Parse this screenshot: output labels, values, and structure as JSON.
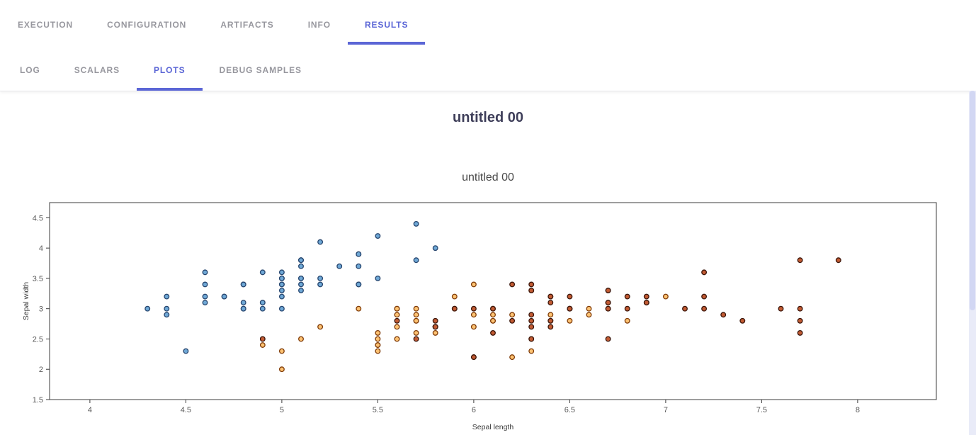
{
  "tabs": {
    "primary": [
      {
        "label": "EXECUTION",
        "active": false
      },
      {
        "label": "CONFIGURATION",
        "active": false
      },
      {
        "label": "ARTIFACTS",
        "active": false
      },
      {
        "label": "INFO",
        "active": false
      },
      {
        "label": "RESULTS",
        "active": true
      }
    ],
    "secondary": [
      {
        "label": "LOG",
        "active": false
      },
      {
        "label": "SCALARS",
        "active": false
      },
      {
        "label": "PLOTS",
        "active": true
      },
      {
        "label": "DEBUG SAMPLES",
        "active": false
      }
    ]
  },
  "content": {
    "group_title": "untitled 00"
  },
  "colors": {
    "accent": "#5b66d6",
    "tab_inactive": "#97979e",
    "axis_line": "#3c3c3c",
    "scrollbar_track": "#e9ebf8",
    "scrollbar_thumb": "#d2d7f3"
  },
  "chart_data": {
    "type": "scatter",
    "title": "untitled 00",
    "xlabel": "Sepal length",
    "ylabel": "Sepal width",
    "xlim": [
      3.79,
      8.41
    ],
    "ylim": [
      1.5,
      4.75
    ],
    "xticks": [
      4,
      4.5,
      5,
      5.5,
      6,
      6.5,
      7,
      7.5,
      8
    ],
    "yticks": [
      1.5,
      2,
      2.5,
      3,
      3.5,
      4,
      4.5
    ],
    "grid": false,
    "legend": "none",
    "series": [
      {
        "name": "blue",
        "fill": "#6fa8d6",
        "stroke": "#26456e",
        "points": [
          [
            5.1,
            3.5
          ],
          [
            4.9,
            3.0
          ],
          [
            4.7,
            3.2
          ],
          [
            4.6,
            3.1
          ],
          [
            5.0,
            3.6
          ],
          [
            5.4,
            3.9
          ],
          [
            4.6,
            3.4
          ],
          [
            5.0,
            3.4
          ],
          [
            4.4,
            2.9
          ],
          [
            4.9,
            3.1
          ],
          [
            5.4,
            3.7
          ],
          [
            4.8,
            3.4
          ],
          [
            4.8,
            3.0
          ],
          [
            4.3,
            3.0
          ],
          [
            5.8,
            4.0
          ],
          [
            5.7,
            4.4
          ],
          [
            5.4,
            3.9
          ],
          [
            5.1,
            3.5
          ],
          [
            5.7,
            3.8
          ],
          [
            5.1,
            3.8
          ],
          [
            5.4,
            3.4
          ],
          [
            5.1,
            3.7
          ],
          [
            4.6,
            3.6
          ],
          [
            5.1,
            3.3
          ],
          [
            4.8,
            3.4
          ],
          [
            5.0,
            3.0
          ],
          [
            5.0,
            3.4
          ],
          [
            5.2,
            3.5
          ],
          [
            5.2,
            3.4
          ],
          [
            4.7,
            3.2
          ],
          [
            4.8,
            3.1
          ],
          [
            5.4,
            3.4
          ],
          [
            5.2,
            4.1
          ],
          [
            5.5,
            4.2
          ],
          [
            4.9,
            3.1
          ],
          [
            5.0,
            3.2
          ],
          [
            5.5,
            3.5
          ],
          [
            4.9,
            3.6
          ],
          [
            4.4,
            3.0
          ],
          [
            5.1,
            3.4
          ],
          [
            5.0,
            3.5
          ],
          [
            4.5,
            2.3
          ],
          [
            4.4,
            3.2
          ],
          [
            5.0,
            3.5
          ],
          [
            5.1,
            3.8
          ],
          [
            4.8,
            3.0
          ],
          [
            5.1,
            3.8
          ],
          [
            4.6,
            3.2
          ],
          [
            5.3,
            3.7
          ],
          [
            5.0,
            3.3
          ]
        ]
      },
      {
        "name": "orange",
        "fill": "#fdc272",
        "stroke": "#7f3b08",
        "points": [
          [
            7.0,
            3.2
          ],
          [
            6.4,
            3.2
          ],
          [
            6.9,
            3.1
          ],
          [
            5.5,
            2.3
          ],
          [
            6.5,
            2.8
          ],
          [
            5.7,
            2.8
          ],
          [
            6.3,
            3.3
          ],
          [
            4.9,
            2.4
          ],
          [
            6.6,
            2.9
          ],
          [
            5.2,
            2.7
          ],
          [
            5.0,
            2.0
          ],
          [
            5.9,
            3.0
          ],
          [
            6.0,
            2.2
          ],
          [
            6.1,
            2.9
          ],
          [
            5.6,
            2.9
          ],
          [
            6.7,
            3.1
          ],
          [
            5.6,
            3.0
          ],
          [
            5.8,
            2.7
          ],
          [
            6.2,
            2.2
          ],
          [
            5.6,
            2.5
          ],
          [
            5.9,
            3.2
          ],
          [
            6.1,
            2.8
          ],
          [
            6.3,
            2.5
          ],
          [
            6.1,
            2.8
          ],
          [
            6.4,
            2.9
          ],
          [
            6.6,
            3.0
          ],
          [
            6.8,
            2.8
          ],
          [
            6.7,
            3.0
          ],
          [
            6.0,
            2.9
          ],
          [
            5.7,
            2.6
          ],
          [
            5.5,
            2.4
          ],
          [
            5.5,
            2.4
          ],
          [
            5.8,
            2.7
          ],
          [
            6.0,
            2.7
          ],
          [
            5.4,
            3.0
          ],
          [
            6.0,
            3.4
          ],
          [
            6.7,
            3.1
          ],
          [
            6.3,
            2.3
          ],
          [
            5.6,
            3.0
          ],
          [
            5.5,
            2.5
          ],
          [
            5.5,
            2.6
          ],
          [
            6.1,
            3.0
          ],
          [
            5.8,
            2.6
          ],
          [
            5.0,
            2.3
          ],
          [
            5.6,
            2.7
          ],
          [
            5.7,
            3.0
          ],
          [
            5.7,
            2.9
          ],
          [
            6.2,
            2.9
          ],
          [
            5.1,
            2.5
          ],
          [
            5.7,
            2.8
          ]
        ]
      },
      {
        "name": "dark-red",
        "fill": "#c25b33",
        "stroke": "#3a150a",
        "points": [
          [
            6.3,
            3.3
          ],
          [
            5.8,
            2.7
          ],
          [
            7.1,
            3.0
          ],
          [
            6.3,
            2.9
          ],
          [
            6.5,
            3.0
          ],
          [
            7.6,
            3.0
          ],
          [
            4.9,
            2.5
          ],
          [
            7.3,
            2.9
          ],
          [
            6.7,
            2.5
          ],
          [
            7.2,
            3.6
          ],
          [
            6.5,
            3.2
          ],
          [
            6.4,
            2.7
          ],
          [
            6.8,
            3.0
          ],
          [
            5.7,
            2.5
          ],
          [
            5.8,
            2.8
          ],
          [
            6.4,
            3.2
          ],
          [
            6.5,
            3.0
          ],
          [
            7.7,
            3.8
          ],
          [
            7.7,
            2.6
          ],
          [
            6.0,
            2.2
          ],
          [
            6.9,
            3.2
          ],
          [
            5.6,
            2.8
          ],
          [
            7.7,
            2.8
          ],
          [
            6.3,
            2.7
          ],
          [
            6.7,
            3.3
          ],
          [
            7.2,
            3.2
          ],
          [
            6.2,
            2.8
          ],
          [
            6.1,
            3.0
          ],
          [
            6.4,
            2.8
          ],
          [
            7.2,
            3.0
          ],
          [
            7.4,
            2.8
          ],
          [
            7.9,
            3.8
          ],
          [
            6.4,
            2.8
          ],
          [
            6.3,
            2.8
          ],
          [
            6.1,
            2.6
          ],
          [
            7.7,
            3.0
          ],
          [
            6.3,
            3.4
          ],
          [
            6.4,
            3.1
          ],
          [
            6.0,
            3.0
          ],
          [
            6.9,
            3.1
          ],
          [
            6.7,
            3.1
          ],
          [
            6.9,
            3.1
          ],
          [
            5.8,
            2.7
          ],
          [
            6.8,
            3.2
          ],
          [
            6.7,
            3.3
          ],
          [
            6.7,
            3.0
          ],
          [
            6.3,
            2.5
          ],
          [
            6.5,
            3.0
          ],
          [
            6.2,
            3.4
          ],
          [
            5.9,
            3.0
          ]
        ]
      }
    ]
  }
}
